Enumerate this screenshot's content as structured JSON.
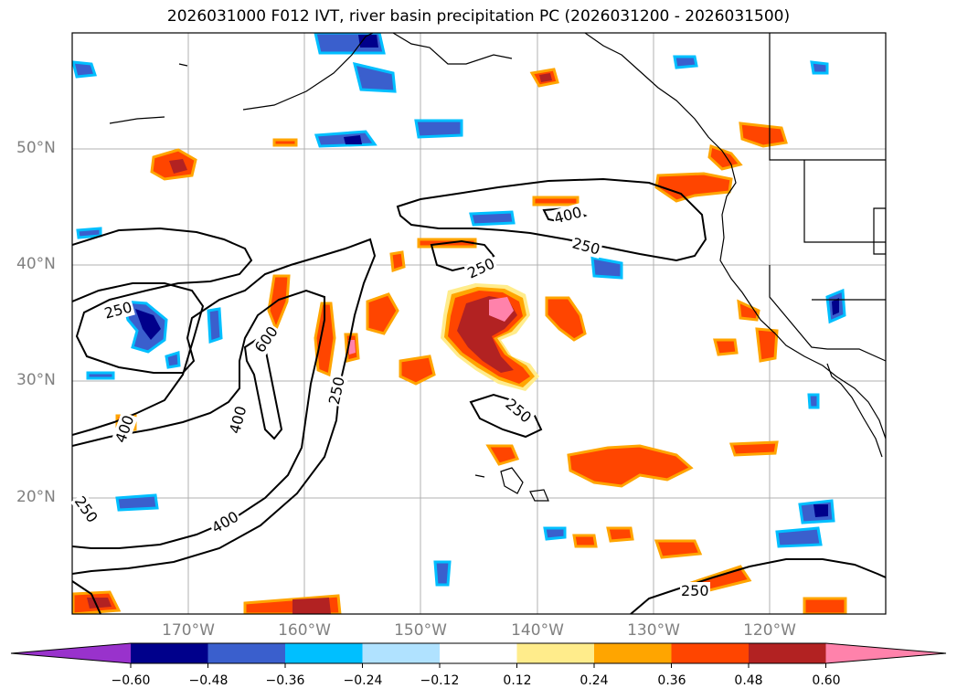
{
  "title": "2026031000 F012 IVT, river basin precipitation PC (2026031200 - 2026031500)",
  "lat_labels": [
    "50°N",
    "40°N",
    "30°N",
    "20°N"
  ],
  "lon_labels": [
    "170°W",
    "160°W",
    "150°W",
    "140°W",
    "130°W",
    "120°W"
  ],
  "contour_labels": [
    "250",
    "250",
    "250",
    "250",
    "250",
    "250",
    "250",
    "400",
    "400",
    "400",
    "400",
    "600"
  ],
  "colorbar": {
    "colors": [
      "#9932cc",
      "#00008b",
      "#3a5fcd",
      "#00bfff",
      "#b0e2ff",
      "#ffffff",
      "#ffec8b",
      "#ffa500",
      "#ff4500",
      "#b22222",
      "#ff82ab"
    ],
    "tick_labels": [
      "−0.60",
      "−0.48",
      "−0.36",
      "−0.24",
      "−0.12",
      "0.12",
      "0.24",
      "0.36",
      "0.48",
      "0.60"
    ]
  },
  "colors": {
    "coast": "#000000",
    "grid": "#b0b0b0",
    "ivt_contour": "#000000"
  }
}
